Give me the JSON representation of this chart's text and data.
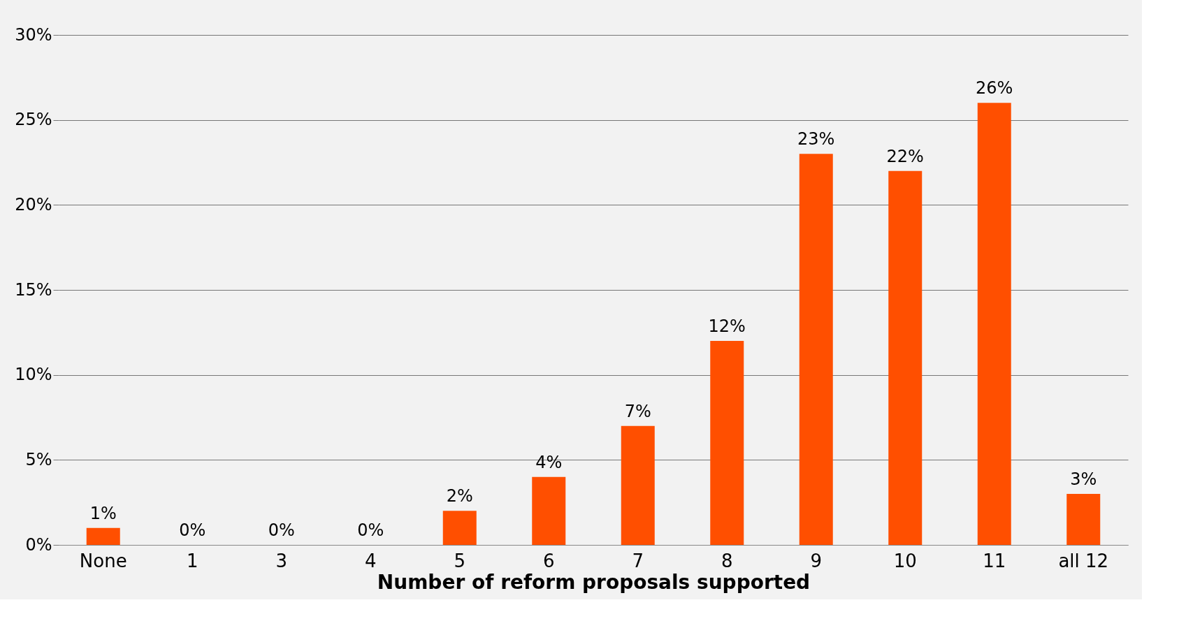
{
  "chart_data": {
    "type": "bar",
    "xlabel": "Number of reform proposals supported",
    "categories": [
      "None",
      "1",
      "3",
      "4",
      "5",
      "6",
      "7",
      "8",
      "9",
      "10",
      "11",
      "all 12"
    ],
    "values": [
      1,
      0,
      0,
      0,
      2,
      4,
      7,
      12,
      23,
      22,
      26,
      3
    ],
    "value_labels": [
      "1%",
      "0%",
      "0%",
      "0%",
      "2%",
      "4%",
      "7%",
      "12%",
      "23%",
      "22%",
      "26%",
      "3%"
    ],
    "color": "#ff4f00",
    "ylim": [
      0,
      30
    ],
    "yticks": [
      {
        "value": 0,
        "label": "0%"
      },
      {
        "value": 5,
        "label": "5%"
      },
      {
        "value": 10,
        "label": "10%"
      },
      {
        "value": 15,
        "label": "15%"
      },
      {
        "value": 20,
        "label": "20%"
      },
      {
        "value": 25,
        "label": "25%"
      },
      {
        "value": 30,
        "label": "30%"
      }
    ],
    "grid": "y"
  }
}
